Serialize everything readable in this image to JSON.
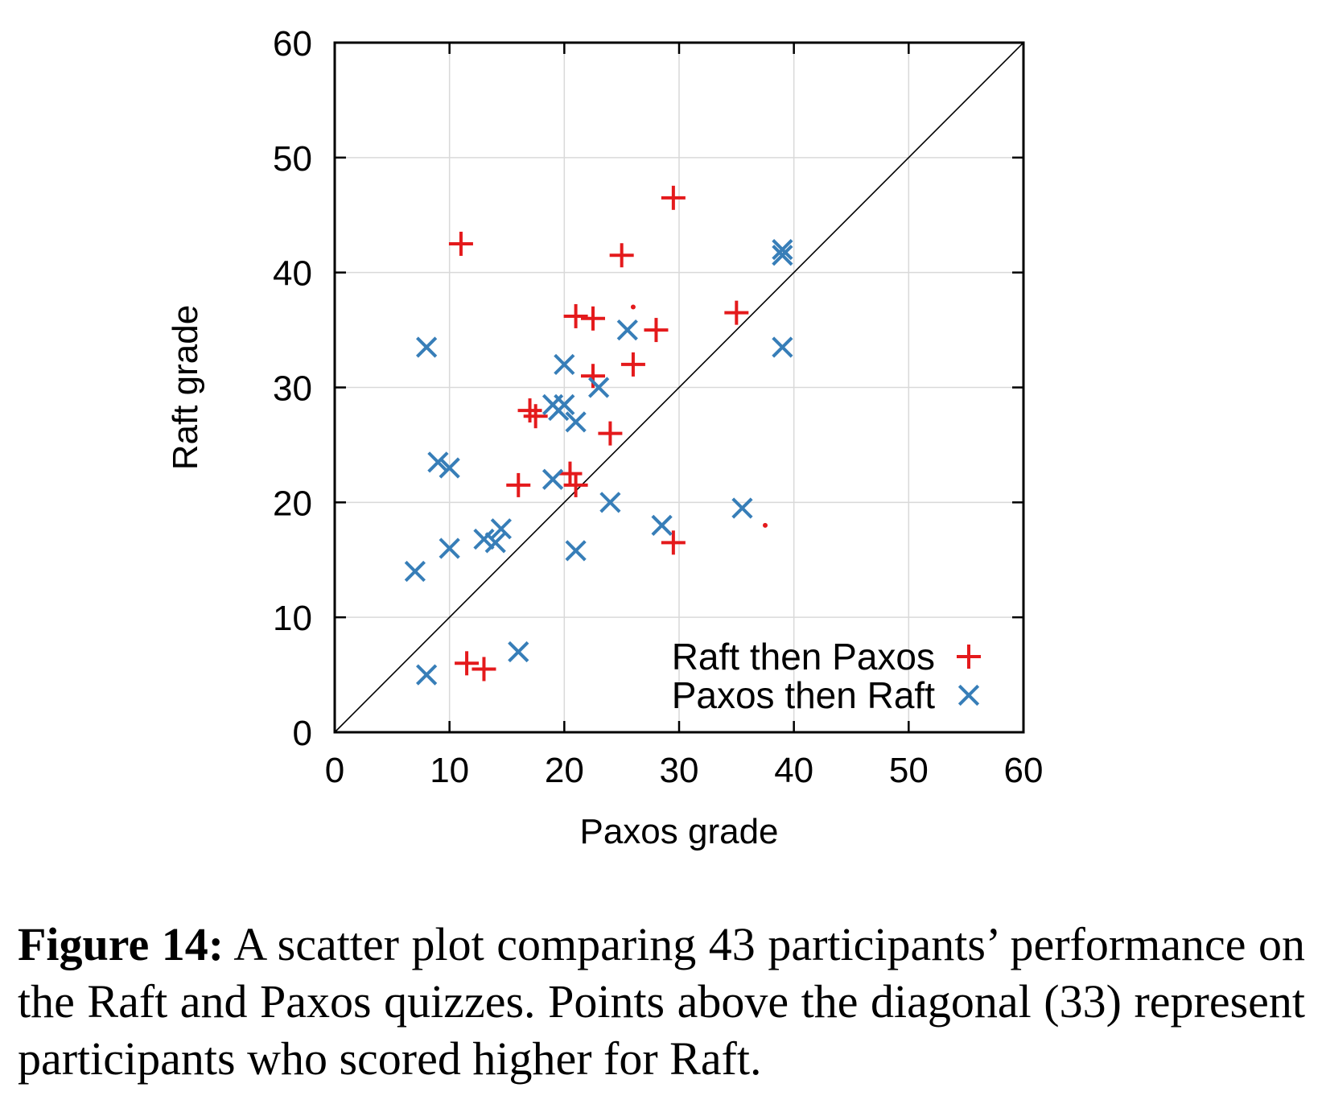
{
  "chart_data": {
    "type": "scatter",
    "xlabel": "Paxos grade",
    "ylabel": "Raft grade",
    "xlim": [
      0,
      60
    ],
    "ylim": [
      0,
      60
    ],
    "x_ticks": [
      "0",
      "10",
      "20",
      "30",
      "40",
      "50",
      "60"
    ],
    "y_ticks": [
      "0",
      "10",
      "20",
      "30",
      "40",
      "50",
      "60"
    ],
    "grid": true,
    "diagonal": true,
    "legend_position": "bottom-right",
    "series": [
      {
        "name": "Raft then Paxos",
        "marker": "plus",
        "color": "#e41a1c",
        "points": [
          [
            29.5,
            46.5
          ],
          [
            11,
            42.5
          ],
          [
            25,
            41.5
          ],
          [
            21,
            36.2
          ],
          [
            22.5,
            36
          ],
          [
            35,
            36.5
          ],
          [
            28,
            35
          ],
          [
            26,
            32
          ],
          [
            22.5,
            31
          ],
          [
            17,
            28
          ],
          [
            17.5,
            27.5
          ],
          [
            24,
            26
          ],
          [
            16,
            21.5
          ],
          [
            20.5,
            22.5
          ],
          [
            21,
            21.5
          ],
          [
            29.5,
            16.5
          ],
          [
            11.5,
            6
          ],
          [
            13,
            5.5
          ]
        ]
      },
      {
        "name": "Paxos then Raft",
        "marker": "cross",
        "color": "#377eb8",
        "points": [
          [
            39,
            42
          ],
          [
            39,
            41.5
          ],
          [
            8,
            33.5
          ],
          [
            39,
            33.5
          ],
          [
            25.5,
            35
          ],
          [
            20,
            32
          ],
          [
            23,
            30
          ],
          [
            19,
            28.5
          ],
          [
            20,
            28.5
          ],
          [
            19.5,
            28
          ],
          [
            21,
            27
          ],
          [
            9,
            23.5
          ],
          [
            10,
            23
          ],
          [
            19,
            22
          ],
          [
            24,
            20
          ],
          [
            35.5,
            19.5
          ],
          [
            28.5,
            18
          ],
          [
            14.5,
            17.7
          ],
          [
            13,
            16.8
          ],
          [
            14,
            16.5
          ],
          [
            10,
            16
          ],
          [
            21,
            15.8
          ],
          [
            7,
            14
          ],
          [
            16,
            7
          ],
          [
            8,
            5
          ]
        ]
      }
    ],
    "dots": [
      [
        26,
        37
      ],
      [
        37.5,
        18
      ]
    ]
  },
  "caption": {
    "label": "Figure 14:",
    "text": " A scatter plot comparing 43 participants’ performance on the Raft and Paxos quizzes. Points above the diagonal (33) represent participants who scored higher for Raft."
  }
}
